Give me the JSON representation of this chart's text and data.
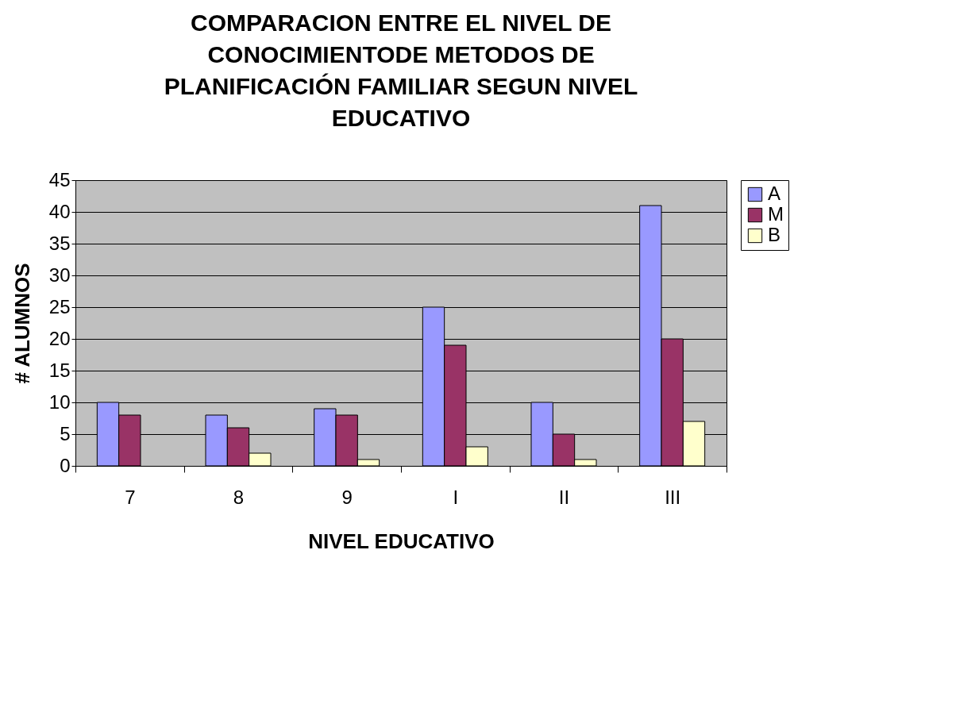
{
  "chart_data": {
    "type": "bar",
    "title": "COMPARACION ENTRE EL NIVEL DE CONOCIMIENTODE METODOS DE PLANIFICACIÓN FAMILIAR SEGUN NIVEL EDUCATIVO",
    "xlabel": "NIVEL EDUCATIVO",
    "ylabel": "# ALUMNOS",
    "categories": [
      "7",
      "8",
      "9",
      "I",
      "II",
      "III"
    ],
    "series": [
      {
        "name": "A",
        "color": "#9999ff",
        "values": [
          10,
          8,
          9,
          25,
          10,
          41
        ]
      },
      {
        "name": "M",
        "color": "#993366",
        "values": [
          8,
          6,
          8,
          19,
          5,
          20
        ]
      },
      {
        "name": "B",
        "color": "#ffffcc",
        "values": [
          null,
          2,
          1,
          3,
          1,
          7
        ]
      }
    ],
    "ylim": [
      0,
      45
    ],
    "yticks": [
      0,
      5,
      10,
      15,
      20,
      25,
      30,
      35,
      40,
      45
    ],
    "grid": "y",
    "legend": "right"
  }
}
